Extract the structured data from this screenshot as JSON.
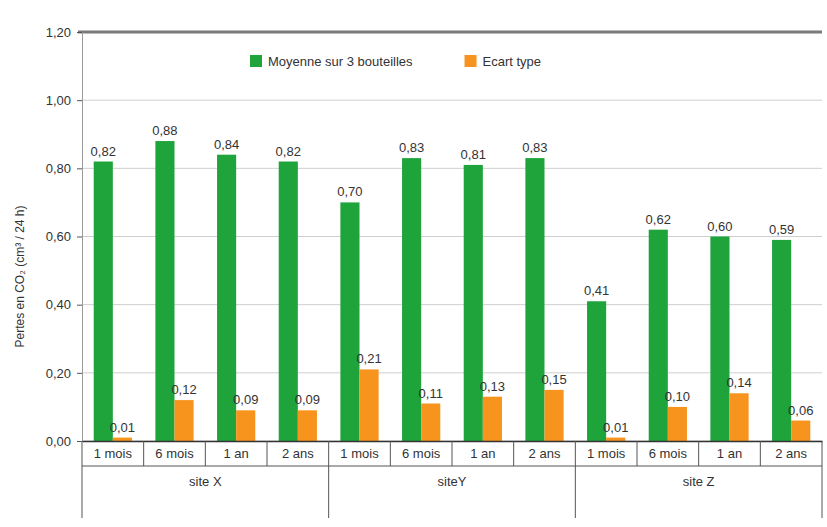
{
  "chart_data": {
    "type": "bar",
    "y_label": "Pertes en CO₂ (cm³ / 24 h)",
    "categories": [
      "1 mois",
      "6 mois",
      "1 an",
      "2 ans",
      "1 mois",
      "6 mois",
      "1 an",
      "2 ans",
      "1 mois",
      "6 mois",
      "1 an",
      "2 ans"
    ],
    "category_groups": [
      "site X",
      "siteY",
      "site Z"
    ],
    "series": [
      {
        "name": "Moyenne sur 3 bouteilles",
        "color": "#1fa33b",
        "values": [
          0.82,
          0.88,
          0.84,
          0.82,
          0.7,
          0.83,
          0.81,
          0.83,
          0.41,
          0.62,
          0.6,
          0.59
        ],
        "value_labels": [
          "0,82",
          "0,88",
          "0,84",
          "0,82",
          "0,70",
          "0,83",
          "0,81",
          "0,83",
          "0,41",
          "0,62",
          "0,60",
          "0,59"
        ]
      },
      {
        "name": "Ecart type",
        "color": "#f7941d",
        "values": [
          0.01,
          0.12,
          0.09,
          0.09,
          0.21,
          0.11,
          0.13,
          0.15,
          0.01,
          0.1,
          0.14,
          0.06
        ],
        "value_labels": [
          "0,01",
          "0,12",
          "0,09",
          "0,09",
          "0,21",
          "0,11",
          "0,13",
          "0,15",
          "0,01",
          "0,10",
          "0,14",
          "0,06"
        ]
      }
    ],
    "ylim": [
      0,
      1.2
    ],
    "yticks": [
      {
        "value": 0,
        "label": "0,00"
      },
      {
        "value": 0.2,
        "label": "0,20"
      },
      {
        "value": 0.4,
        "label": "0,40"
      },
      {
        "value": 0.6,
        "label": "0,60"
      },
      {
        "value": 0.8,
        "label": "0,80"
      },
      {
        "value": 1.0,
        "label": "1,00"
      },
      {
        "value": 1.2,
        "label": "1,20"
      }
    ],
    "grid": true,
    "legend": "top",
    "data_labels": true
  }
}
